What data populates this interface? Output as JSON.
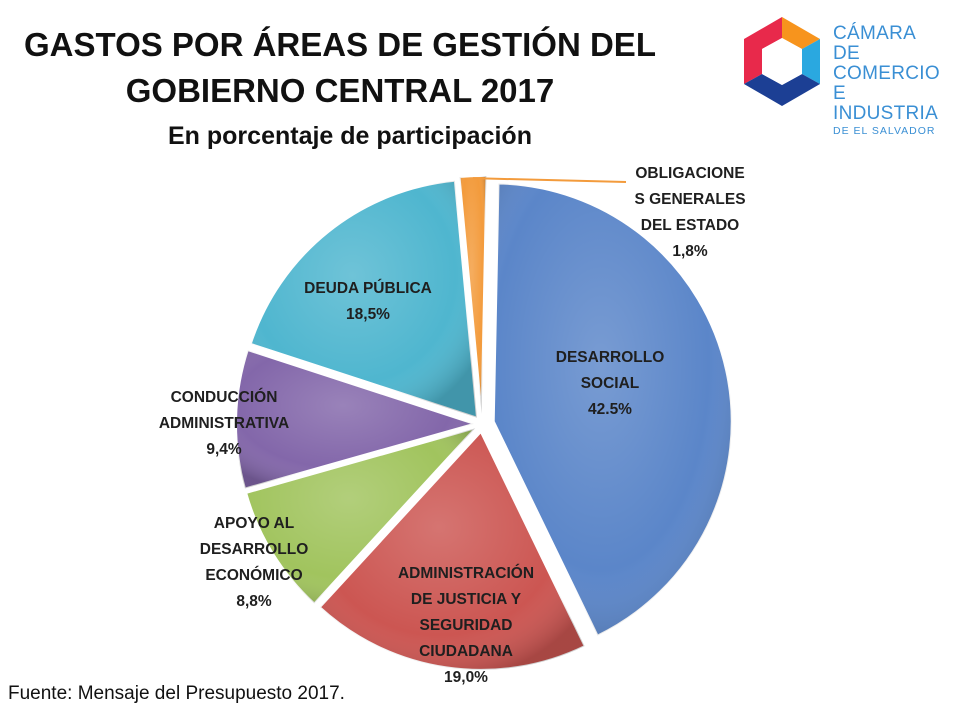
{
  "title_line1": "GASTOS POR ÁREAS DE GESTIÓN DEL",
  "title_line2": "GOBIERNO CENTRAL 2017",
  "subtitle": "En porcentaje de participación",
  "logo": {
    "line1": "CÁMARA DE",
    "line2": "COMERCIO",
    "line3": "E INDUSTRIA",
    "line4": "DE EL SALVADOR",
    "colors": [
      "#f7941d",
      "#e8294b",
      "#2aa8e0",
      "#1c3f94",
      "#8dc63f"
    ]
  },
  "source": "Fuente: Mensaje del Presupuesto 2017.",
  "chart_data": {
    "type": "pie",
    "slices": [
      {
        "label_lines": [
          "DESARROLLO",
          "SOCIAL",
          "42.5%"
        ],
        "value": 42.5,
        "color": "#5b86c9"
      },
      {
        "label_lines": [
          "ADMINISTRACIÓN",
          "DE JUSTICIA Y",
          "SEGURIDAD",
          "CIUDADANA",
          "19,0%"
        ],
        "value": 19.0,
        "color": "#cc5652"
      },
      {
        "label_lines": [
          "APOYO AL",
          "DESARROLLO",
          "ECONÓMICO",
          "8,8%"
        ],
        "value": 8.8,
        "color": "#a1c45e"
      },
      {
        "label_lines": [
          "CONDUCCIÓN",
          "ADMINISTRATIVA",
          "9,4%"
        ],
        "value": 9.4,
        "color": "#8367aa"
      },
      {
        "label_lines": [
          "DEUDA PÚBLICA",
          "18,5%"
        ],
        "value": 18.5,
        "color": "#4fb6cf"
      },
      {
        "label_lines": [
          "OBLIGACIONE",
          "S GENERALES",
          "DEL ESTADO",
          "1,8%"
        ],
        "value": 1.8,
        "color": "#f39b3c"
      }
    ]
  }
}
